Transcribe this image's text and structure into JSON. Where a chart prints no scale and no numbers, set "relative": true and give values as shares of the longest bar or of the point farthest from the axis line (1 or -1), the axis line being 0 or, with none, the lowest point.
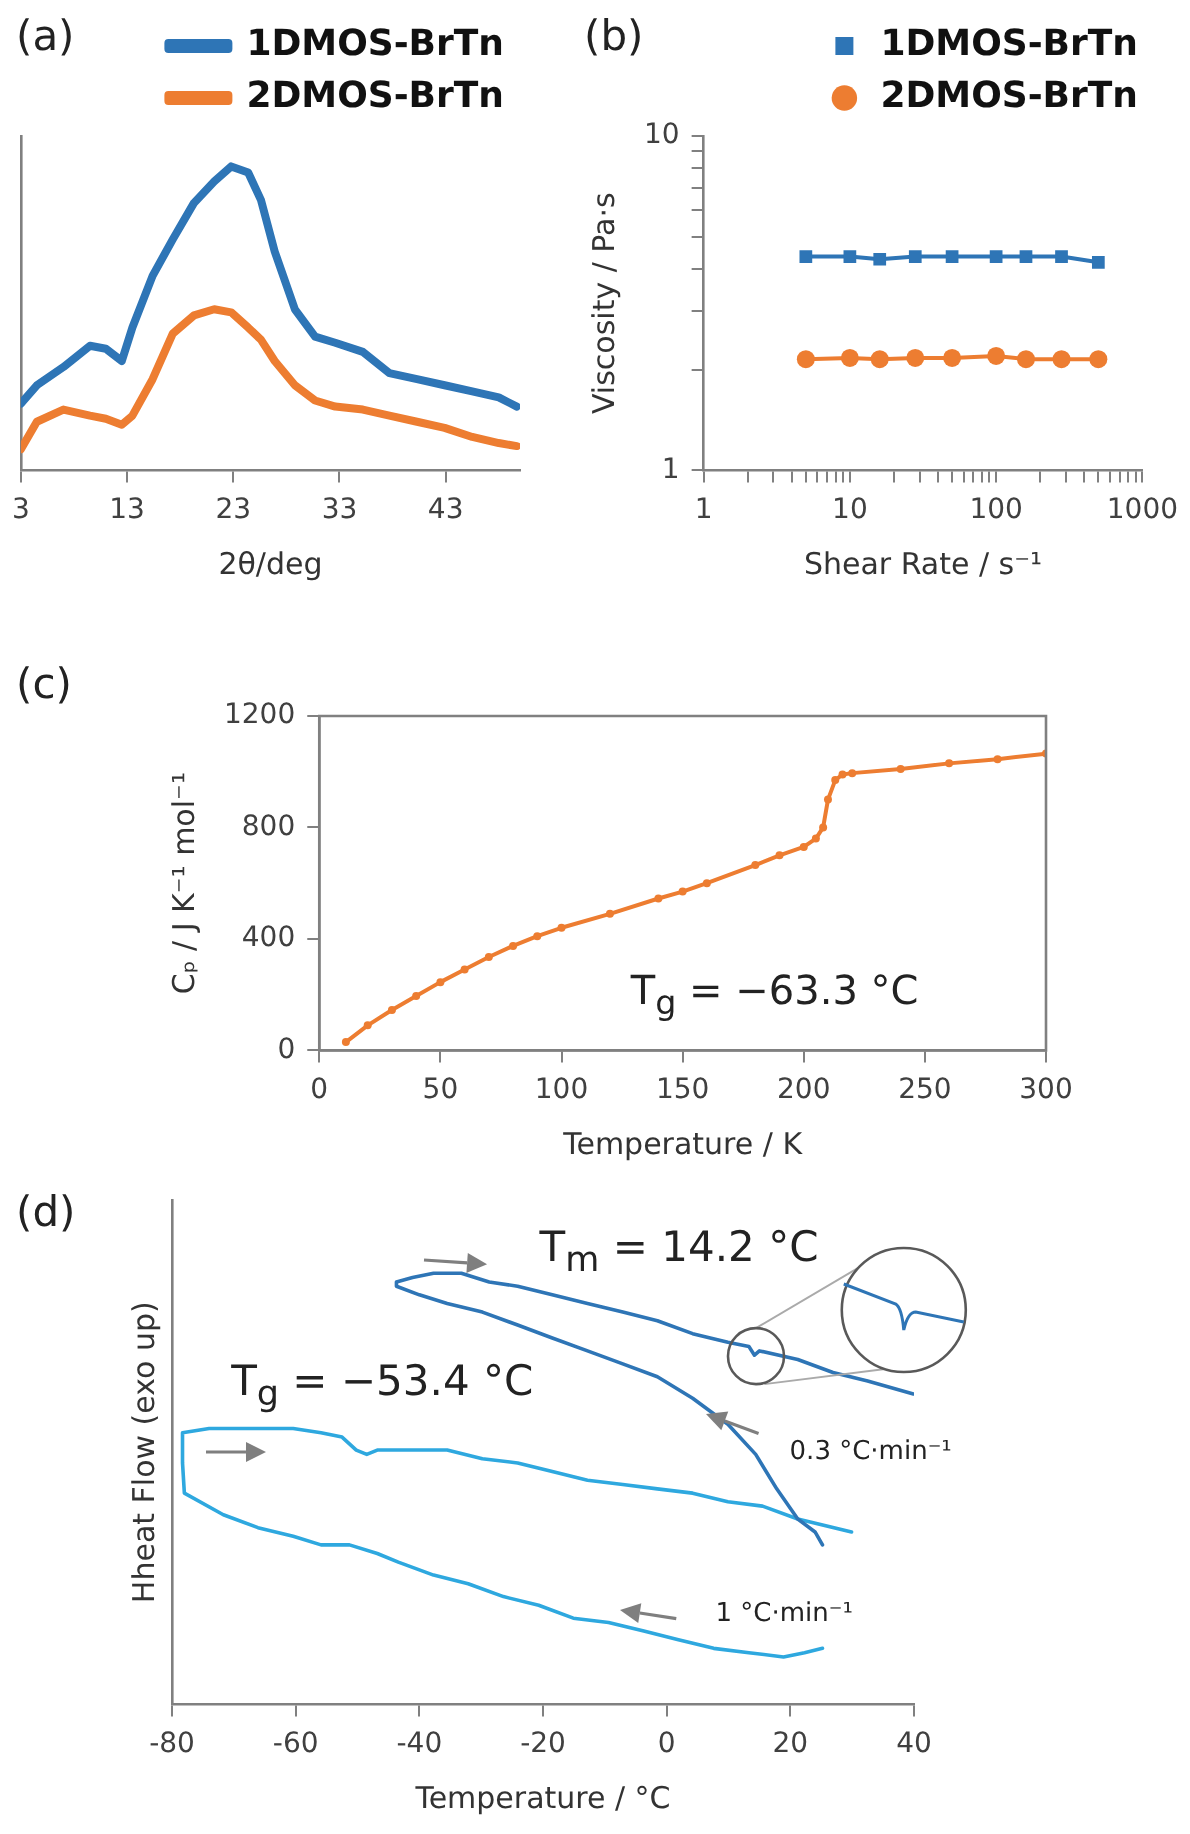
{
  "chart_data": [
    {
      "type": "line",
      "title": "(a)",
      "xlabel": "2θ/deg",
      "relative": true,
      "tick_labels": "x",
      "legend": "top right",
      "xlim": [
        3,
        50
      ],
      "xticks": [
        3,
        13,
        23,
        33,
        43
      ],
      "x": [
        3,
        4.5,
        7,
        9.5,
        11,
        12.5,
        13.5,
        15.4,
        17.3,
        19.3,
        21.2,
        22.8,
        24.4,
        25.6,
        26.9,
        28.8,
        30.7,
        32.6,
        35.2,
        37.7,
        40.3,
        42.9,
        45.5,
        48,
        49.7
      ],
      "series": [
        {
          "name": "1DMOS-BrTn",
          "color": "#2e75b6",
          "values": [
            0.22,
            0.28,
            0.34,
            0.41,
            0.4,
            0.36,
            0.47,
            0.64,
            0.76,
            0.88,
            0.95,
            1.0,
            0.98,
            0.89,
            0.72,
            0.53,
            0.44,
            0.42,
            0.39,
            0.32,
            0.3,
            0.28,
            0.26,
            0.24,
            0.21
          ]
        },
        {
          "name": "2DMOS-BrTn",
          "color": "#ed7d31",
          "values": [
            0.07,
            0.16,
            0.2,
            0.18,
            0.17,
            0.15,
            0.18,
            0.3,
            0.45,
            0.51,
            0.53,
            0.52,
            0.47,
            0.43,
            0.36,
            0.28,
            0.23,
            0.21,
            0.2,
            0.18,
            0.16,
            0.14,
            0.11,
            0.09,
            0.08
          ]
        }
      ]
    },
    {
      "type": "line",
      "title": "(b)",
      "xlabel": "Shear Rate / s⁻¹",
      "ylabel": "Viscosity / Pa·s",
      "log": "xy",
      "legend": "top right",
      "xlim": [
        1,
        1000
      ],
      "ylim": [
        1,
        10
      ],
      "xticks": [
        1,
        {
          "value": 2,
          "label": null
        },
        {
          "value": 3,
          "label": null
        },
        {
          "value": 4,
          "label": null
        },
        {
          "value": 5,
          "label": null
        },
        {
          "value": 6,
          "label": null
        },
        {
          "value": 7,
          "label": null
        },
        {
          "value": 8,
          "label": null
        },
        {
          "value": 9,
          "label": null
        },
        10,
        {
          "value": 20,
          "label": null
        },
        {
          "value": 30,
          "label": null
        },
        {
          "value": 40,
          "label": null
        },
        {
          "value": 50,
          "label": null
        },
        {
          "value": 60,
          "label": null
        },
        {
          "value": 70,
          "label": null
        },
        {
          "value": 80,
          "label": null
        },
        {
          "value": 90,
          "label": null
        },
        100,
        {
          "value": 200,
          "label": null
        },
        {
          "value": 300,
          "label": null
        },
        {
          "value": 400,
          "label": null
        },
        {
          "value": 500,
          "label": null
        },
        {
          "value": 600,
          "label": null
        },
        {
          "value": 700,
          "label": null
        },
        {
          "value": 800,
          "label": null
        },
        {
          "value": 900,
          "label": null
        },
        1000
      ],
      "yticks": [
        1,
        {
          "value": 2,
          "label": null
        },
        {
          "value": 3,
          "label": null
        },
        {
          "value": 4,
          "label": null
        },
        {
          "value": 5,
          "label": null
        },
        {
          "value": 6,
          "label": null
        },
        {
          "value": 7,
          "label": null
        },
        {
          "value": 8,
          "label": null
        },
        {
          "value": 9,
          "label": null
        },
        10
      ],
      "x": [
        5,
        10,
        16,
        28,
        50,
        100,
        160,
        280,
        500
      ],
      "series": [
        {
          "name": "1DMOS-BrTn",
          "color": "#2e75b6",
          "marker": "square",
          "values": [
            4.36,
            4.36,
            4.28,
            4.36,
            4.36,
            4.36,
            4.36,
            4.36,
            4.19
          ]
        },
        {
          "name": "2DMOS-BrTn",
          "color": "#ed7d31",
          "marker": "circle",
          "values": [
            2.15,
            2.17,
            2.15,
            2.17,
            2.17,
            2.2,
            2.15,
            2.15,
            2.15
          ]
        }
      ]
    },
    {
      "type": "line",
      "title": "(c)",
      "xlabel": "Temperature / K",
      "ylabel": "Cₚ / J K⁻¹ mol⁻¹",
      "marker": "circle",
      "color": "#ed7d31",
      "xlim": [
        0,
        300
      ],
      "ylim": [
        0,
        1200
      ],
      "xticks": [
        0,
        50,
        100,
        150,
        200,
        250,
        300
      ],
      "yticks": [
        0,
        400,
        800,
        1200
      ],
      "x": [
        11,
        20,
        30,
        40,
        50,
        60,
        70,
        80,
        90,
        100,
        120,
        140,
        150,
        160,
        180,
        190,
        200,
        205,
        208,
        210,
        213,
        216,
        220,
        240,
        260,
        280,
        300
      ],
      "values": [
        30,
        90,
        145,
        195,
        245,
        290,
        335,
        375,
        410,
        440,
        490,
        545,
        570,
        600,
        665,
        700,
        730,
        760,
        800,
        900,
        970,
        990,
        995,
        1010,
        1030,
        1045,
        1065
      ],
      "annotations": [
        "T$_{g}$ = −63.3 °C"
      ]
    },
    {
      "type": "line",
      "title": "(d)",
      "xlabel": "Temperature / °C",
      "ylabel": "Hheat Flow (exo up)",
      "relative": true,
      "tick_labels": "x",
      "xlim": [
        -80,
        40
      ],
      "xticks": [
        -80,
        -60,
        -40,
        -20,
        0,
        20,
        40
      ],
      "series": [
        {
          "color": "#2e75b6",
          "x": [
            25.2,
            24.0,
            21.2,
            17.8,
            14.4,
            9.9,
            4.2,
            -1.5,
            -7.1,
            -12.8,
            -18.5,
            -24.1,
            -29.8,
            -35.5,
            -40.0,
            -43.7,
            -43.7,
            -41.1,
            -37.7,
            -33.2,
            -28.7,
            -24.1,
            -18.5,
            -12.8,
            -7.1,
            -1.5,
            4.2,
            9.9,
            13.3,
            14.2,
            15.0,
            21.2,
            26.9,
            32.5,
            39.9
          ],
          "values": [
            0.37,
            0.4,
            0.43,
            0.5,
            0.58,
            0.65,
            0.71,
            0.76,
            0.79,
            0.82,
            0.85,
            0.88,
            0.91,
            0.93,
            0.95,
            0.97,
            0.98,
            0.99,
            1.0,
            1.0,
            0.98,
            0.97,
            0.95,
            0.93,
            0.91,
            0.89,
            0.86,
            0.84,
            0.83,
            0.81,
            0.82,
            0.8,
            0.77,
            0.75,
            0.72
          ]
        },
        {
          "color": "#2ea8df",
          "x": [
            25.2,
            22.3,
            18.9,
            13.3,
            7.6,
            1.9,
            -3.7,
            -9.4,
            -15.1,
            -20.7,
            -26.4,
            -32.1,
            -37.7,
            -43.4,
            -46.8,
            -51.3,
            -55.9,
            -60.4,
            -66.1,
            -71.7,
            -78.0,
            -78.3,
            -78.3,
            -74.0,
            -67.2,
            -60.4,
            -55.9,
            -52.5,
            -50.2,
            -48.5,
            -46.8,
            -41.1,
            -35.5,
            -29.8,
            -24.1,
            -18.5,
            -12.8,
            -7.1,
            -1.5,
            4.2,
            9.9,
            15.5,
            21.2,
            29.9
          ],
          "values": [
            0.13,
            0.12,
            0.11,
            0.12,
            0.13,
            0.15,
            0.17,
            0.19,
            0.2,
            0.23,
            0.25,
            0.28,
            0.3,
            0.33,
            0.35,
            0.37,
            0.37,
            0.39,
            0.41,
            0.44,
            0.49,
            0.56,
            0.63,
            0.64,
            0.64,
            0.64,
            0.63,
            0.62,
            0.59,
            0.58,
            0.59,
            0.59,
            0.59,
            0.57,
            0.56,
            0.54,
            0.52,
            0.51,
            0.5,
            0.49,
            0.47,
            0.46,
            0.43,
            0.4
          ]
        }
      ],
      "annotations": [
        "T$_{m}$ = 14.2 °C",
        "T$_{g}$ = −53.4 °C",
        "0.3 °C·min⁻¹",
        "1 °C·min⁻¹"
      ]
    }
  ]
}
